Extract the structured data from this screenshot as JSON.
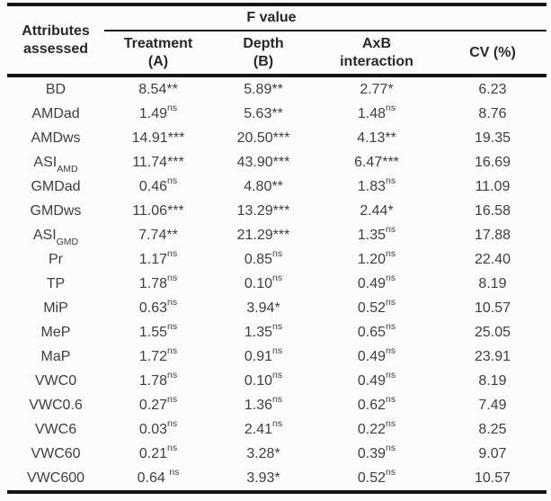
{
  "table": {
    "header": {
      "attributes_label_line1": "Attributes",
      "attributes_label_line2": "assessed",
      "f_value_label": "F value",
      "sub_columns": [
        {
          "line1": "Treatment",
          "line2": "(A)"
        },
        {
          "line1": "Depth",
          "line2": "(B)"
        },
        {
          "line1": "AxB",
          "line2": "interaction"
        }
      ],
      "cv_label": "CV (%)"
    },
    "rows": [
      {
        "attribute": {
          "base": "BD",
          "sub": ""
        },
        "cells": [
          {
            "v": "8.54",
            "m": "**"
          },
          {
            "v": "5.89",
            "m": "**"
          },
          {
            "v": "2.77",
            "m": "*"
          }
        ],
        "cv": "6.23"
      },
      {
        "attribute": {
          "base": "AMDad",
          "sub": ""
        },
        "cells": [
          {
            "v": "1.49",
            "m": "ns"
          },
          {
            "v": "5.63",
            "m": "**"
          },
          {
            "v": "1.48",
            "m": "ns"
          }
        ],
        "cv": "8.76"
      },
      {
        "attribute": {
          "base": "AMDws",
          "sub": ""
        },
        "cells": [
          {
            "v": "14.91",
            "m": "***"
          },
          {
            "v": "20.50",
            "m": "***"
          },
          {
            "v": "4.13",
            "m": "**"
          }
        ],
        "cv": "19.35"
      },
      {
        "attribute": {
          "base": "ASI",
          "sub": "AMD"
        },
        "cells": [
          {
            "v": "11.74",
            "m": "***"
          },
          {
            "v": "43.90",
            "m": "***"
          },
          {
            "v": "6.47",
            "m": "***"
          }
        ],
        "cv": "16.69"
      },
      {
        "attribute": {
          "base": "GMDad",
          "sub": ""
        },
        "cells": [
          {
            "v": "0.46",
            "m": "ns"
          },
          {
            "v": "4.80",
            "m": "**"
          },
          {
            "v": "1.83",
            "m": "ns"
          }
        ],
        "cv": "11.09"
      },
      {
        "attribute": {
          "base": "GMDws",
          "sub": ""
        },
        "cells": [
          {
            "v": "11.06",
            "m": "***"
          },
          {
            "v": "13.29",
            "m": "***"
          },
          {
            "v": "2.44",
            "m": "*"
          }
        ],
        "cv": "16.58"
      },
      {
        "attribute": {
          "base": "ASI",
          "sub": "GMD"
        },
        "cells": [
          {
            "v": "7.74",
            "m": "**"
          },
          {
            "v": "21.29",
            "m": "***"
          },
          {
            "v": "1.35",
            "m": "ns"
          }
        ],
        "cv": "17.88"
      },
      {
        "attribute": {
          "base": "Pr",
          "sub": ""
        },
        "cells": [
          {
            "v": "1.17",
            "m": "ns"
          },
          {
            "v": "0.85",
            "m": "ns"
          },
          {
            "v": "1.20",
            "m": "ns"
          }
        ],
        "cv": "22.40"
      },
      {
        "attribute": {
          "base": "TP",
          "sub": ""
        },
        "cells": [
          {
            "v": "1.78",
            "m": "ns"
          },
          {
            "v": "0.10",
            "m": "ns"
          },
          {
            "v": "0.49",
            "m": "ns"
          }
        ],
        "cv": "8.19"
      },
      {
        "attribute": {
          "base": "MiP",
          "sub": ""
        },
        "cells": [
          {
            "v": "0.63",
            "m": "ns"
          },
          {
            "v": "3.94",
            "m": "*"
          },
          {
            "v": "0.52",
            "m": "ns"
          }
        ],
        "cv": "10.57"
      },
      {
        "attribute": {
          "base": "MeP",
          "sub": ""
        },
        "cells": [
          {
            "v": "1.55",
            "m": "ns"
          },
          {
            "v": "1.35",
            "m": "ns"
          },
          {
            "v": "0.65",
            "m": "ns"
          }
        ],
        "cv": "25.05"
      },
      {
        "attribute": {
          "base": "MaP",
          "sub": ""
        },
        "cells": [
          {
            "v": "1.72",
            "m": "ns"
          },
          {
            "v": "0.91",
            "m": "ns"
          },
          {
            "v": "0.49",
            "m": "ns"
          }
        ],
        "cv": "23.91"
      },
      {
        "attribute": {
          "base": "VWC0",
          "sub": ""
        },
        "cells": [
          {
            "v": "1.78",
            "m": "ns"
          },
          {
            "v": "0.10",
            "m": "ns"
          },
          {
            "v": "0.49",
            "m": "ns"
          }
        ],
        "cv": "8.19"
      },
      {
        "attribute": {
          "base": "VWC0.6",
          "sub": ""
        },
        "cells": [
          {
            "v": "0.27",
            "m": "ns"
          },
          {
            "v": "1.36",
            "m": "ns"
          },
          {
            "v": "0.62",
            "m": "ns"
          }
        ],
        "cv": "7.49"
      },
      {
        "attribute": {
          "base": "VWC6",
          "sub": ""
        },
        "cells": [
          {
            "v": "0.03",
            "m": "ns"
          },
          {
            "v": "2.41",
            "m": "ns"
          },
          {
            "v": "0.22",
            "m": "ns"
          }
        ],
        "cv": "8.25"
      },
      {
        "attribute": {
          "base": "VWC60",
          "sub": ""
        },
        "cells": [
          {
            "v": "0.21",
            "m": "ns"
          },
          {
            "v": "3.28",
            "m": "*"
          },
          {
            "v": "0.39",
            "m": "ns"
          }
        ],
        "cv": "9.07"
      },
      {
        "attribute": {
          "base": "VWC600",
          "sub": ""
        },
        "cells": [
          {
            "v": "0.64",
            "m": " ns"
          },
          {
            "v": "3.93",
            "m": "*"
          },
          {
            "v": "0.52",
            "m": "ns"
          }
        ],
        "cv": "10.57"
      }
    ]
  }
}
